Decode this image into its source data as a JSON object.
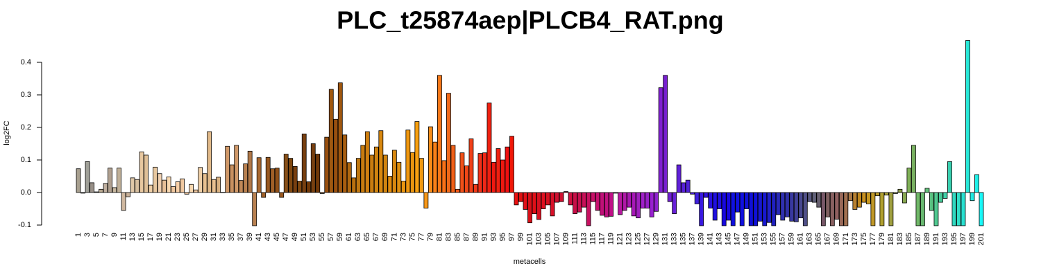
{
  "chart_data": {
    "type": "bar",
    "title": "PLC_t25874aep|PLCB4_RAT.png",
    "x_label": "metacells",
    "y_label": "log2FC",
    "categories": [
      "1",
      null,
      "3",
      null,
      "5",
      null,
      "7",
      null,
      "9",
      null,
      "11",
      null,
      "13",
      null,
      "15",
      null,
      "17",
      null,
      "19",
      null,
      "21",
      null,
      "23",
      null,
      "25",
      null,
      "27",
      null,
      "29",
      null,
      "31",
      null,
      "33",
      null,
      "35",
      null,
      "37",
      null,
      "39",
      null,
      "41",
      null,
      "43",
      null,
      "45",
      null,
      "47",
      null,
      "49",
      null,
      "51",
      null,
      "53",
      null,
      "55",
      null,
      "57",
      null,
      "59",
      null,
      "61",
      null,
      "63",
      null,
      "65",
      null,
      "67",
      null,
      "69",
      null,
      "71",
      null,
      "73",
      null,
      "75",
      null,
      "77",
      null,
      "79",
      null,
      "81",
      null,
      "83",
      null,
      "85",
      null,
      "87",
      null,
      "89",
      null,
      "91",
      null,
      "93",
      null,
      "95",
      null,
      "97",
      null,
      "99",
      null,
      "101",
      null,
      "103",
      null,
      "105",
      null,
      "107",
      null,
      "109",
      null,
      "111",
      null,
      "113",
      null,
      "115",
      null,
      "117",
      null,
      "119",
      null,
      "121",
      null,
      "123",
      null,
      "125",
      null,
      "127",
      null,
      "129",
      null,
      "131",
      null,
      "133",
      null,
      "135",
      null,
      "137",
      null,
      "139",
      null,
      "141",
      null,
      "143",
      null,
      "145",
      null,
      "147",
      null,
      "149",
      null,
      "151",
      null,
      "153",
      null,
      "155",
      null,
      "157",
      null,
      "159",
      null,
      "161",
      null,
      "163",
      null,
      "165",
      null,
      "167",
      null,
      "169",
      null,
      "171",
      null,
      "173",
      null,
      "175",
      null,
      "177",
      null,
      "179",
      null,
      "181",
      null,
      "183",
      null,
      "185",
      null,
      "187",
      null,
      "189",
      null,
      "191",
      null,
      "193",
      null,
      "195",
      null,
      "197",
      null,
      "199",
      null,
      "201"
    ],
    "values": [
      0.073,
      -0.002,
      0.095,
      0.03,
      0.002,
      0.01,
      0.028,
      0.075,
      0.015,
      0.075,
      -0.055,
      -0.013,
      0.045,
      0.04,
      0.125,
      0.115,
      0.023,
      0.078,
      0.058,
      0.038,
      0.048,
      0.018,
      0.033,
      0.042,
      -0.005,
      0.025,
      0.008,
      0.077,
      0.058,
      0.187,
      0.04,
      0.047,
      0,
      0.142,
      0.085,
      0.145,
      0.037,
      0.088,
      0.127,
      -0.102,
      0.107,
      -0.015,
      0.108,
      0.073,
      0.075,
      -0.015,
      0.118,
      0.105,
      0.08,
      0.035,
      0.18,
      0.033,
      0.15,
      0.118,
      -0.003,
      0.17,
      0.317,
      0.225,
      0.337,
      0.177,
      0.092,
      0.045,
      0.105,
      0.145,
      0.187,
      0.115,
      0.14,
      0.19,
      0.115,
      0.05,
      0.13,
      0.093,
      0.035,
      0.192,
      0.123,
      0.218,
      0.105,
      -0.048,
      0.202,
      0.155,
      0.36,
      0.098,
      0.305,
      0.145,
      0.01,
      0.122,
      0.082,
      0.165,
      0.025,
      0.12,
      0.122,
      0.275,
      0.093,
      0.135,
      0.1,
      0.14,
      0.173,
      -0.038,
      -0.028,
      -0.052,
      -0.093,
      -0.065,
      -0.083,
      -0.05,
      -0.038,
      -0.072,
      -0.03,
      -0.028,
      0.003,
      -0.038,
      -0.065,
      -0.06,
      -0.045,
      -0.102,
      -0.028,
      -0.055,
      -0.07,
      -0.075,
      -0.073,
      -0.002,
      -0.068,
      -0.055,
      -0.045,
      -0.072,
      -0.078,
      -0.048,
      -0.048,
      -0.075,
      -0.058,
      0.322,
      0.36,
      -0.028,
      -0.065,
      0.085,
      0.03,
      0.038,
      -0.005,
      -0.035,
      -0.102,
      -0.015,
      -0.048,
      -0.085,
      -0.05,
      -0.102,
      -0.085,
      -0.102,
      -0.06,
      -0.102,
      -0.05,
      -0.102,
      -0.102,
      -0.088,
      -0.102,
      -0.092,
      -0.102,
      -0.068,
      -0.085,
      -0.075,
      -0.088,
      -0.09,
      -0.078,
      -0.102,
      -0.028,
      -0.03,
      -0.045,
      -0.102,
      -0.075,
      -0.102,
      -0.082,
      -0.102,
      -0.102,
      -0.025,
      -0.052,
      -0.045,
      -0.03,
      -0.035,
      -0.102,
      -0.01,
      -0.102,
      -0.008,
      -0.102,
      -0.003,
      0.01,
      -0.032,
      0.075,
      0.145,
      -0.102,
      -0.102,
      0.013,
      -0.055,
      -0.102,
      -0.03,
      -0.018,
      0.095,
      -0.102,
      -0.102,
      -0.102,
      0.467,
      -0.025,
      0.055,
      -0.102
    ],
    "colors": [
      "#a8a090",
      "#908878",
      "#a0a098",
      "#989088",
      "#b0a898",
      "#b8a890",
      "#c0b0a0",
      "#b0a090",
      "#c8b8a0",
      "#c0b098",
      "#d0b8a0",
      "#c8b098",
      "#e0c8a8",
      "#d8c0a0",
      "#e8c8a0",
      "#e0c098",
      "#f0d0a8",
      "#e8c8a0",
      "#f0d0b0",
      "#e8c098",
      "#f8d8b0",
      "#f0c8a0",
      "#f8d0a8",
      "#f0c8a0",
      "#e8c098",
      "#f8d8b0",
      "#f0c8a0",
      "#f0d0a8",
      "#e8c090",
      "#e0b888",
      "#e8c090",
      "#d8b080",
      "#d8a878",
      "#d09868",
      "#c89060",
      "#d09868",
      "#c08858",
      "#b88050",
      "#b07848",
      "#b88050",
      "#a86830",
      "#a06028",
      "#985820",
      "#a06028",
      "#905018",
      "#985820",
      "#885018",
      "#804810",
      "#784010",
      "#804810",
      "#784010",
      "#703808",
      "#784010",
      "#703808",
      "#804810",
      "#985010",
      "#a05810",
      "#985010",
      "#a05810",
      "#a85e10",
      "#b06810",
      "#b87010",
      "#c07810",
      "#c87c10",
      "#d08010",
      "#c87c10",
      "#d08410",
      "#d88810",
      "#d08410",
      "#e08c10",
      "#d88810",
      "#e09010",
      "#e89410",
      "#f09810",
      "#e89410",
      "#f8a010",
      "#f09810",
      "#f89818",
      "#f88c18",
      "#f88018",
      "#f87818",
      "#f87018",
      "#f06818",
      "#f06018",
      "#f05818",
      "#f05018",
      "#f04818",
      "#f04018",
      "#f03818",
      "#f03018",
      "#f02818",
      "#f02010",
      "#f01810",
      "#f02010",
      "#f01810",
      "#f01010",
      "#f01808",
      "#e81010",
      "#e01010",
      "#e01018",
      "#d81018",
      "#e01018",
      "#d81020",
      "#e01020",
      "#d81020",
      "#d81028",
      "#d01030",
      "#d01030",
      "#d01038",
      "#d01040",
      "#c81048",
      "#c81050",
      "#c81058",
      "#c81060",
      "#c81068",
      "#c81070",
      "#c01078",
      "#c01080",
      "#c01088",
      "#c01090",
      "#b818a0",
      "#b018a8",
      "#a818b0",
      "#a818b8",
      "#a020c0",
      "#a020c8",
      "#9820c8",
      "#9820d0",
      "#9020d0",
      "#8020d0",
      "#7820d0",
      "#7020d0",
      "#6820d8",
      "#6020d8",
      "#5820d8",
      "#5020d8",
      "#4820d8",
      "#4020e0",
      "#3818e0",
      "#3010e0",
      "#2810e0",
      "#2010e0",
      "#2010e0",
      "#1808e0",
      "#1808e0",
      "#1010e0",
      "#1010e0",
      "#1010e0",
      "#1010d8",
      "#1010d8",
      "#1010d8",
      "#1818d0",
      "#1818d0",
      "#2020c8",
      "#2020c0",
      "#2828b8",
      "#3030b0",
      "#3030a8",
      "#3838a0",
      "#404098",
      "#484890",
      "#505088",
      "#585880",
      "#606078",
      "#686070",
      "#785868",
      "#806060",
      "#886060",
      "#906060",
      "#986858",
      "#a07050",
      "#a87848",
      "#b88030",
      "#c08820",
      "#c89020",
      "#c89820",
      "#c09828",
      "#b89828",
      "#b0a030",
      "#a8a038",
      "#a0a040",
      "#98a040",
      "#90a048",
      "#88a850",
      "#80b058",
      "#78b060",
      "#70b868",
      "#68b870",
      "#60c078",
      "#58c080",
      "#50c890",
      "#48c898",
      "#40d0a8",
      "#38d0b0",
      "#30d8c0",
      "#30e0c8",
      "#28e0d0",
      "#28e8d8",
      "#20e8e0",
      "#20f0e8",
      "#18f8f8"
    ],
    "ylim": [
      -0.1,
      0.47
    ],
    "yticks": [
      -0.1,
      {
        "value": 0,
        "label": "0.0"
      },
      0.1,
      0.2,
      0.3,
      0.4
    ],
    "grid": false
  }
}
